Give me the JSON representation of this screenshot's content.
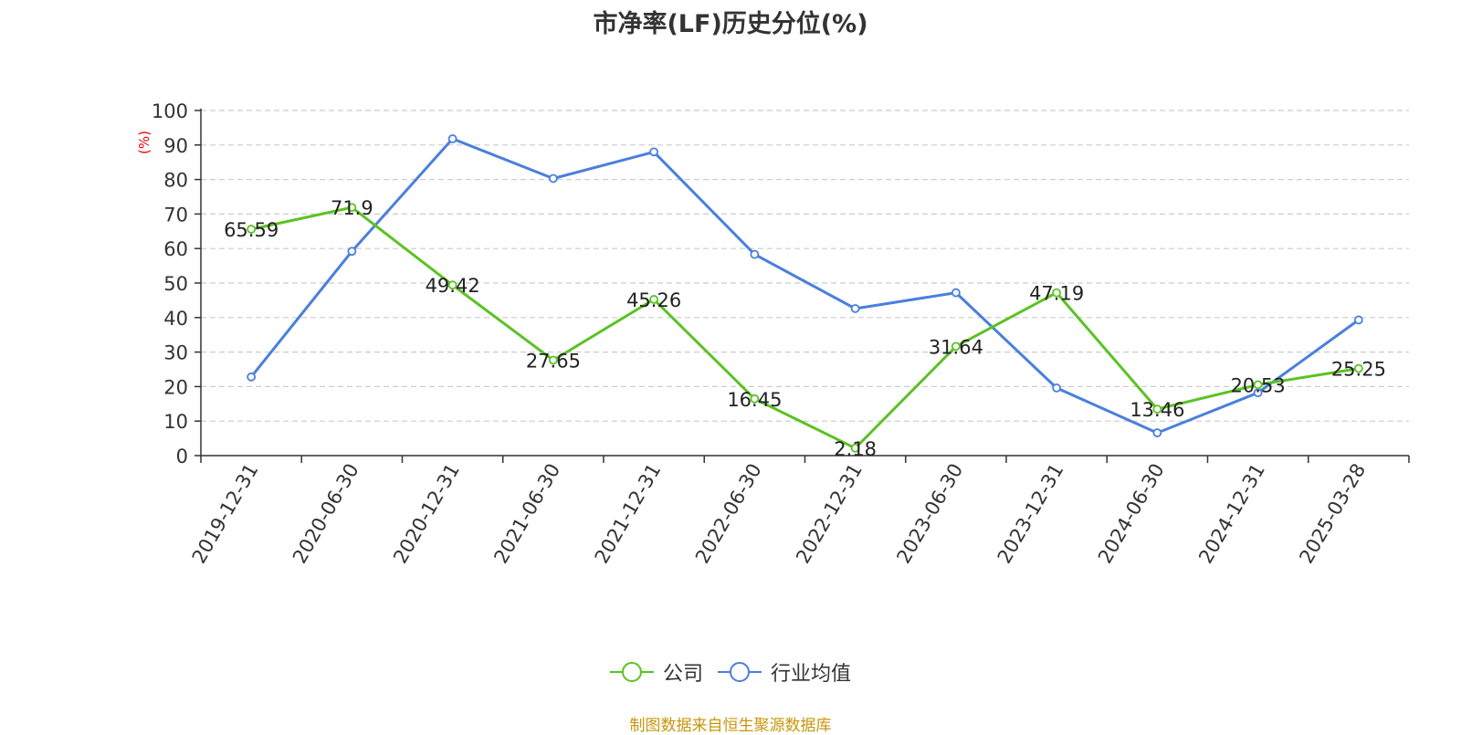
{
  "title": "市净率(LF)历史分位(%)",
  "source_note": "制图数据来自恒生聚源数据库",
  "chart_data": {
    "type": "line",
    "title": "市净率(LF)历史分位(%)",
    "ylabel": "(%)",
    "xlabel": "",
    "ylim": [
      0,
      100
    ],
    "yticks": [
      0,
      10,
      20,
      30,
      40,
      50,
      60,
      70,
      80,
      90,
      100
    ],
    "categories": [
      "2019-12-31",
      "2020-06-30",
      "2020-12-31",
      "2021-06-30",
      "2021-12-31",
      "2022-06-30",
      "2022-12-31",
      "2023-06-30",
      "2023-12-31",
      "2024-06-30",
      "2024-12-31",
      "2025-03-28"
    ],
    "grid": true,
    "legend_position": "bottom",
    "series": [
      {
        "name": "公司",
        "color": "#5bc224",
        "show_labels": true,
        "values": [
          65.59,
          71.9,
          49.42,
          27.65,
          45.26,
          16.45,
          2.18,
          31.64,
          47.19,
          13.46,
          20.53,
          25.25
        ]
      },
      {
        "name": "行业均值",
        "color": "#4a7fdc",
        "show_labels": false,
        "values": [
          22.8,
          59.2,
          91.8,
          80.3,
          88.0,
          58.3,
          42.6,
          47.2,
          19.6,
          6.6,
          18.2,
          39.3
        ]
      }
    ]
  }
}
